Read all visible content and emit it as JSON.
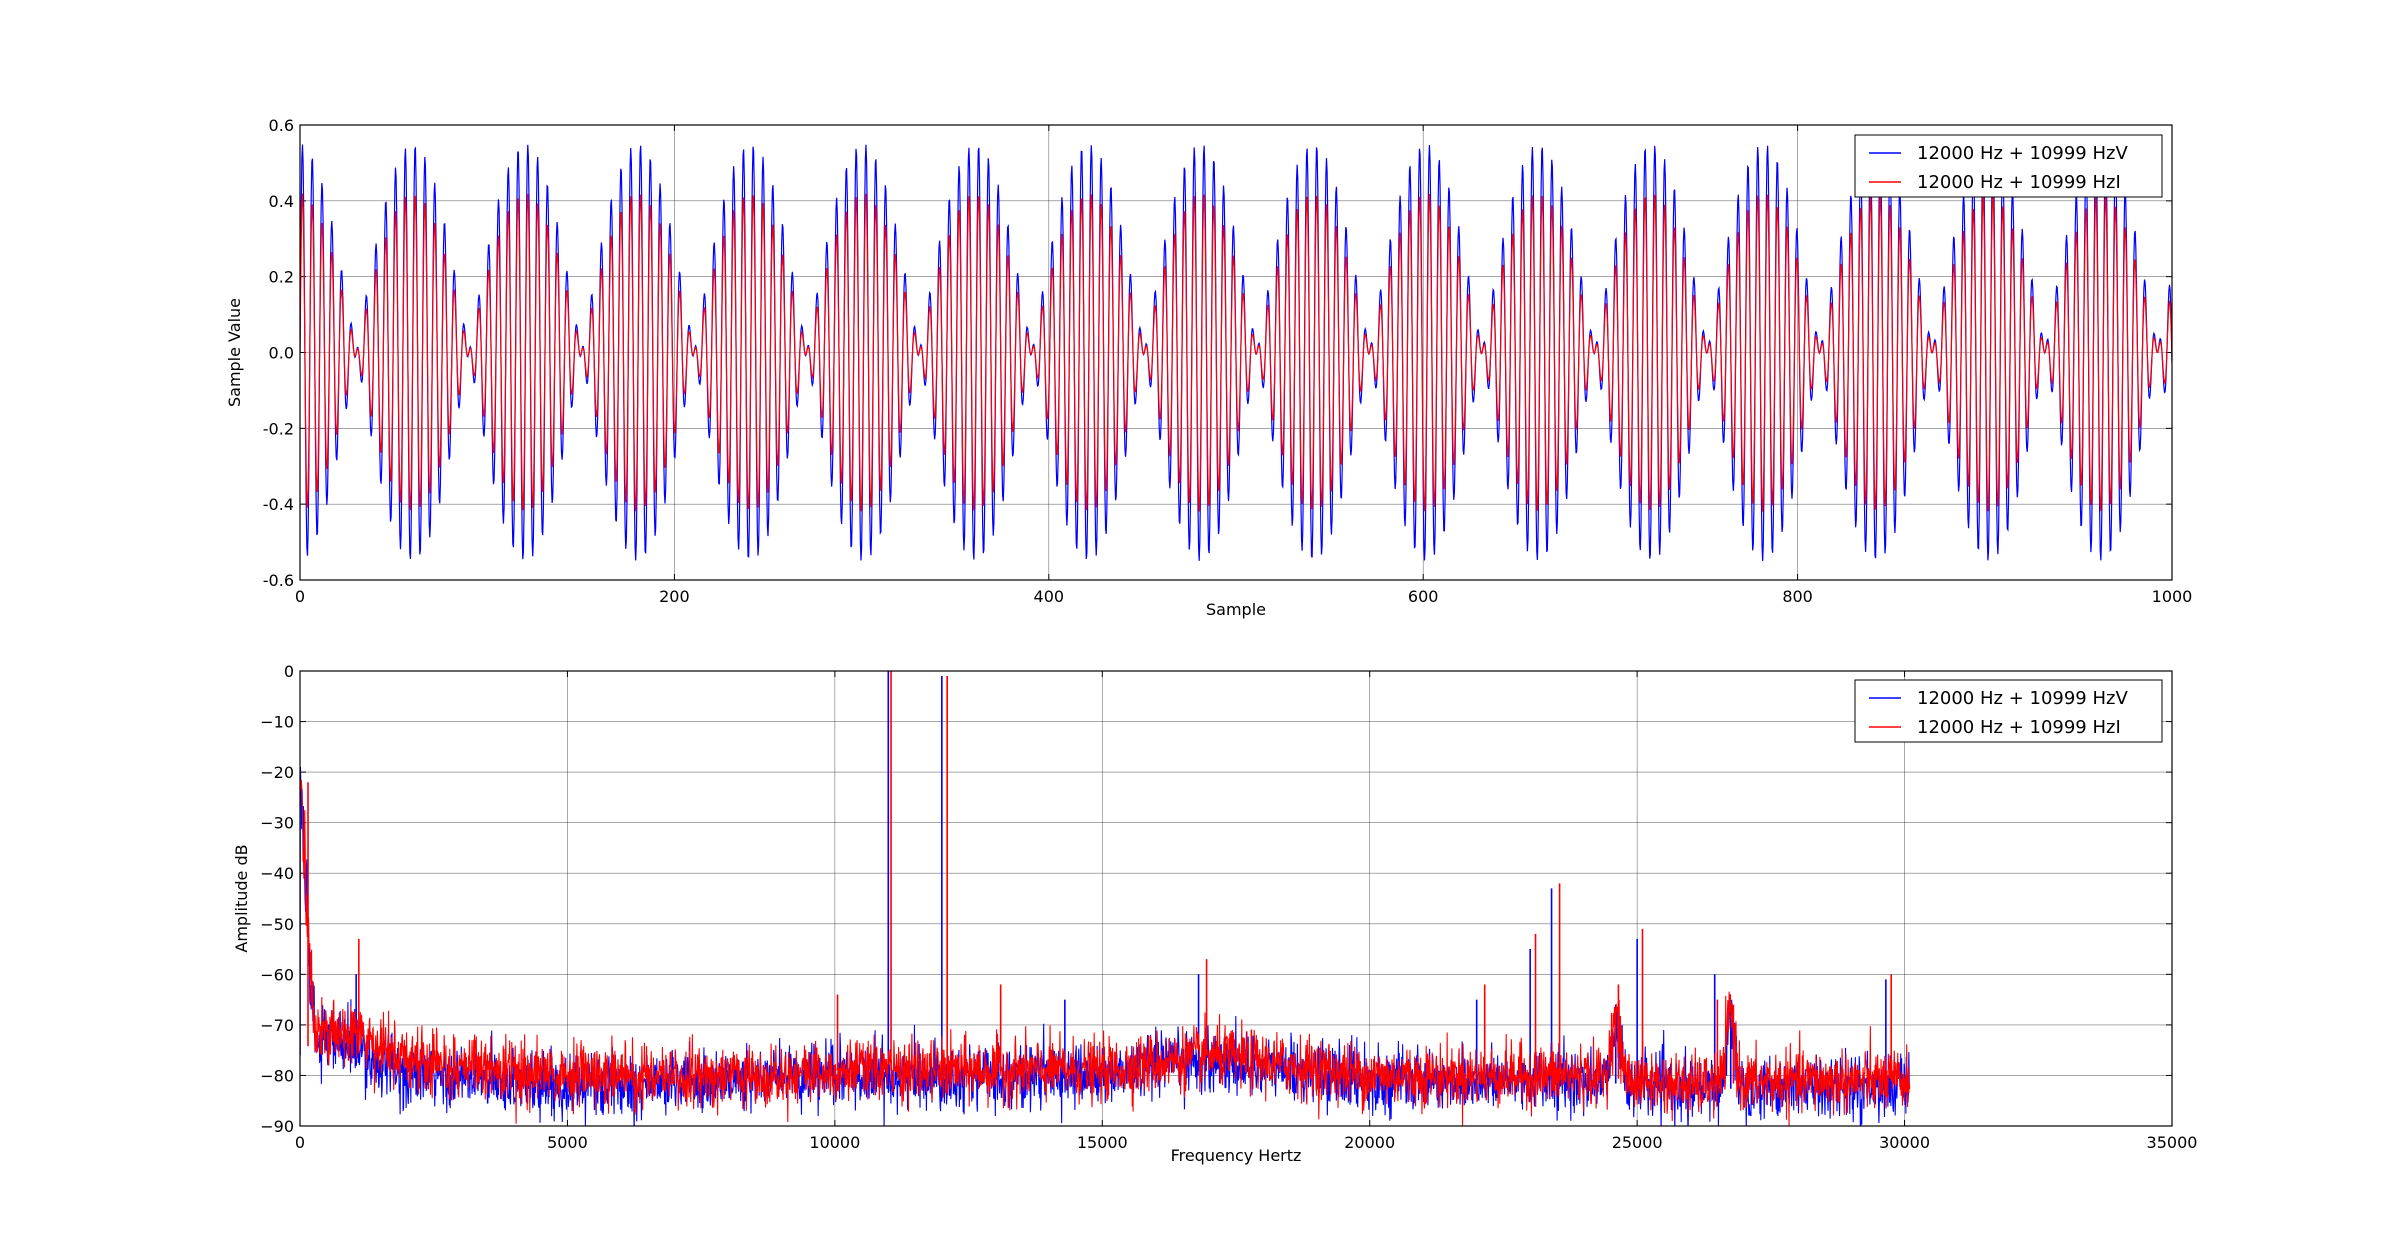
{
  "chart_data": [
    {
      "type": "line",
      "xlabel": "Sample",
      "ylabel": "Sample Value",
      "xlim": [
        0,
        1000
      ],
      "ylim": [
        -0.6,
        0.6
      ],
      "x_ticks": [
        "0",
        "200",
        "400",
        "600",
        "800",
        "1000"
      ],
      "y_ticks": [
        "-0.6",
        "-0.4",
        "-0.2",
        "0.0",
        "0.2",
        "0.4",
        "0.6"
      ],
      "x_tick_values": [
        0,
        200,
        400,
        600,
        800,
        1000
      ],
      "y_tick_values": [
        -0.6,
        -0.4,
        -0.2,
        0.0,
        0.2,
        0.4,
        0.6
      ],
      "grid": true,
      "legend_placement": "top-right",
      "series": [
        {
          "name": "12000 Hz + 10999 HzV",
          "color": "#0000ff",
          "description": "Sum of two tones (12000 Hz and 10999 Hz) sampled at ~60.2 kHz; beat envelope with peaks near ±0.55",
          "components": [
            {
              "frequency_hz": 12000,
              "amplitude": 0.275
            },
            {
              "frequency_hz": 10999,
              "amplitude": 0.275
            }
          ],
          "sample_rate_hz": 60200
        },
        {
          "name": "12000 Hz + 10999 HzI",
          "color": "#ff0000",
          "description": "Same two tones, lower amplitude peaks near ±0.42",
          "components": [
            {
              "frequency_hz": 12000,
              "amplitude": 0.21
            },
            {
              "frequency_hz": 10999,
              "amplitude": 0.21
            }
          ],
          "sample_rate_hz": 60200
        }
      ]
    },
    {
      "type": "line",
      "xlabel": "Frequency Hertz",
      "ylabel": "Amplitude dB",
      "xlim": [
        0,
        35000
      ],
      "ylim": [
        -90,
        0
      ],
      "x_ticks": [
        "0",
        "5000",
        "10000",
        "15000",
        "20000",
        "25000",
        "30000",
        "35000"
      ],
      "y_ticks": [
        "−90",
        "−80",
        "−70",
        "−60",
        "−50",
        "−40",
        "−30",
        "−20",
        "−10",
        "0"
      ],
      "x_tick_values": [
        0,
        5000,
        10000,
        15000,
        20000,
        25000,
        30000,
        35000
      ],
      "y_tick_values": [
        -90,
        -80,
        -70,
        -60,
        -50,
        -40,
        -30,
        -20,
        -10,
        0
      ],
      "grid": true,
      "legend_placement": "top-right",
      "series": [
        {
          "name": "12000 Hz + 10999 HzV",
          "color": "#0000ff",
          "x_end": 30100,
          "noise_floor_db": [
            [
              0,
              -76
            ],
            [
              2000,
              -80
            ],
            [
              5000,
              -82
            ],
            [
              8000,
              -81
            ],
            [
              10000,
              -80
            ],
            [
              15000,
              -80
            ],
            [
              17000,
              -77
            ],
            [
              20000,
              -81
            ],
            [
              24000,
              -81
            ],
            [
              26000,
              -83
            ],
            [
              28000,
              -82
            ],
            [
              30100,
              -82
            ]
          ],
          "peaks": [
            {
              "x": 0,
              "db": -19
            },
            {
              "x": 1050,
              "db": -60
            },
            {
              "x": 10999,
              "db": 0
            },
            {
              "x": 12000,
              "db": -1
            },
            {
              "x": 14300,
              "db": -65
            },
            {
              "x": 16800,
              "db": -60
            },
            {
              "x": 22000,
              "db": -65
            },
            {
              "x": 23000,
              "db": -55
            },
            {
              "x": 23400,
              "db": -43
            },
            {
              "x": 24600,
              "db": -66
            },
            {
              "x": 25000,
              "db": -53
            },
            {
              "x": 26450,
              "db": -60
            },
            {
              "x": 26750,
              "db": -66
            },
            {
              "x": 29650,
              "db": -61
            }
          ]
        },
        {
          "name": "12000 Hz + 10999 HzI",
          "color": "#ff0000",
          "x_end": 30100,
          "noise_floor_db": [
            [
              0,
              -74
            ],
            [
              2000,
              -77
            ],
            [
              5000,
              -80
            ],
            [
              8000,
              -80
            ],
            [
              10000,
              -79
            ],
            [
              15000,
              -79
            ],
            [
              17000,
              -76
            ],
            [
              20000,
              -80
            ],
            [
              24000,
              -80
            ],
            [
              26000,
              -82
            ],
            [
              28000,
              -81
            ],
            [
              30100,
              -81
            ]
          ],
          "peaks": [
            {
              "x": 150,
              "db": -22
            },
            {
              "x": 1100,
              "db": -53
            },
            {
              "x": 10050,
              "db": -64
            },
            {
              "x": 11050,
              "db": 0
            },
            {
              "x": 12100,
              "db": -1
            },
            {
              "x": 13100,
              "db": -62
            },
            {
              "x": 16950,
              "db": -57
            },
            {
              "x": 22150,
              "db": -62
            },
            {
              "x": 23100,
              "db": -52
            },
            {
              "x": 23550,
              "db": -42
            },
            {
              "x": 24650,
              "db": -62
            },
            {
              "x": 25100,
              "db": -51
            },
            {
              "x": 26500,
              "db": -65
            },
            {
              "x": 26800,
              "db": -66
            },
            {
              "x": 29750,
              "db": -60
            }
          ]
        }
      ]
    }
  ]
}
